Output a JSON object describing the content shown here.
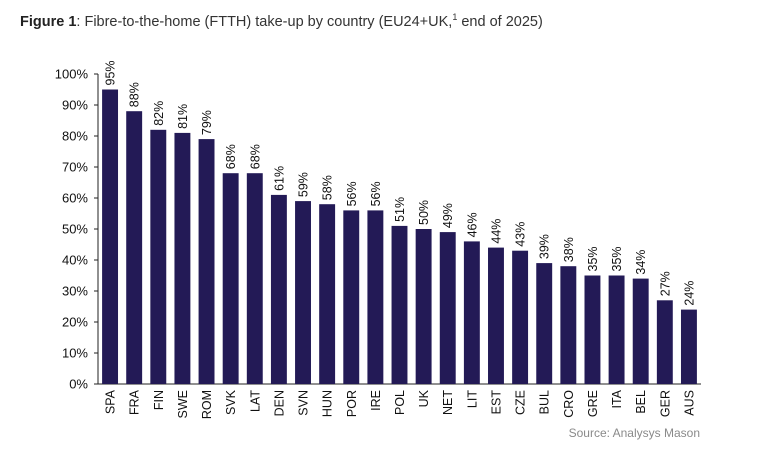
{
  "figure": {
    "label": "Figure 1",
    "text_before_sup": ": Fibre-to-the-home (FTTH) take-up by country (EU24+UK,",
    "footnote": "1",
    "text_after_sup": " end of 2025)"
  },
  "source": "Source: Analysys Mason",
  "colors": {
    "bar": "#231a56",
    "axis": "#222222"
  },
  "chart_data": {
    "type": "bar",
    "title": "Fibre-to-the-home (FTTH) take-up by country (EU24+UK, end of 2025)",
    "categories": [
      "SPA",
      "FRA",
      "FIN",
      "SWE",
      "ROM",
      "SVK",
      "LAT",
      "DEN",
      "SVN",
      "HUN",
      "POR",
      "IRE",
      "POL",
      "UK",
      "NET",
      "LIT",
      "EST",
      "CZE",
      "BUL",
      "CRO",
      "GRE",
      "ITA",
      "BEL",
      "GER",
      "AUS"
    ],
    "values": [
      95,
      88,
      82,
      81,
      79,
      68,
      68,
      61,
      59,
      58,
      56,
      56,
      51,
      50,
      49,
      46,
      44,
      43,
      39,
      38,
      35,
      35,
      34,
      27,
      24
    ],
    "data_labels": [
      "95%",
      "88%",
      "82%",
      "81%",
      "79%",
      "68%",
      "68%",
      "61%",
      "59%",
      "58%",
      "56%",
      "56%",
      "51%",
      "50%",
      "49%",
      "46%",
      "44%",
      "43%",
      "39%",
      "38%",
      "35%",
      "35%",
      "34%",
      "27%",
      "24%"
    ],
    "y_ticks": [
      "0%",
      "10%",
      "20%",
      "30%",
      "40%",
      "50%",
      "60%",
      "70%",
      "80%",
      "90%",
      "100%"
    ],
    "ylim": [
      0,
      100
    ],
    "grid": false,
    "legend": "none"
  }
}
